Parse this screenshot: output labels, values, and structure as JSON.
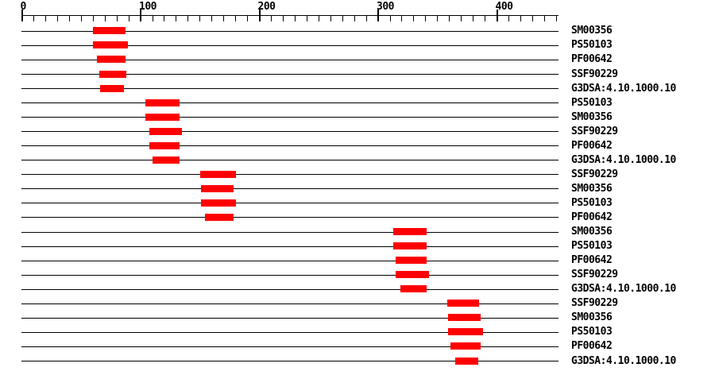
{
  "figure": {
    "background_color": "#ffffff",
    "line_color": "#000000",
    "feature_color": "#ff0000",
    "text_color": "#000000"
  },
  "chart_data": {
    "type": "bar",
    "subtype": "protein-sequence-feature-tracks",
    "title": "",
    "xlabel": "",
    "ylabel": "",
    "grid": false,
    "legend": false,
    "x_axis": {
      "min": 0,
      "max": 450,
      "major_tick_interval": 100,
      "minor_tick_interval": 10,
      "major_tick_labels": [
        "0",
        "100",
        "200",
        "300",
        "400"
      ]
    },
    "tracks": [
      {
        "label": "SM00356",
        "start": 60,
        "end": 87
      },
      {
        "label": "PS50103",
        "start": 60,
        "end": 89
      },
      {
        "label": "PF00642",
        "start": 63,
        "end": 87
      },
      {
        "label": "SSF90229",
        "start": 65,
        "end": 88
      },
      {
        "label": "G3DSA:4.10.1000.10",
        "start": 66,
        "end": 86
      },
      {
        "label": "PS50103",
        "start": 104,
        "end": 133
      },
      {
        "label": "SM00356",
        "start": 104,
        "end": 133
      },
      {
        "label": "SSF90229",
        "start": 107,
        "end": 135
      },
      {
        "label": "PF00642",
        "start": 107,
        "end": 133
      },
      {
        "label": "G3DSA:4.10.1000.10",
        "start": 110,
        "end": 133
      },
      {
        "label": "SSF90229",
        "start": 150,
        "end": 180
      },
      {
        "label": "SM00356",
        "start": 151,
        "end": 178
      },
      {
        "label": "PS50103",
        "start": 151,
        "end": 180
      },
      {
        "label": "PF00642",
        "start": 154,
        "end": 178
      },
      {
        "label": "SM00356",
        "start": 313,
        "end": 341
      },
      {
        "label": "PS50103",
        "start": 313,
        "end": 341
      },
      {
        "label": "PF00642",
        "start": 315,
        "end": 341
      },
      {
        "label": "SSF90229",
        "start": 315,
        "end": 343
      },
      {
        "label": "G3DSA:4.10.1000.10",
        "start": 319,
        "end": 341
      },
      {
        "label": "SSF90229",
        "start": 358,
        "end": 385
      },
      {
        "label": "SM00356",
        "start": 359,
        "end": 386
      },
      {
        "label": "PS50103",
        "start": 359,
        "end": 388
      },
      {
        "label": "PF00642",
        "start": 361,
        "end": 386
      },
      {
        "label": "G3DSA:4.10.1000.10",
        "start": 365,
        "end": 384
      }
    ]
  }
}
